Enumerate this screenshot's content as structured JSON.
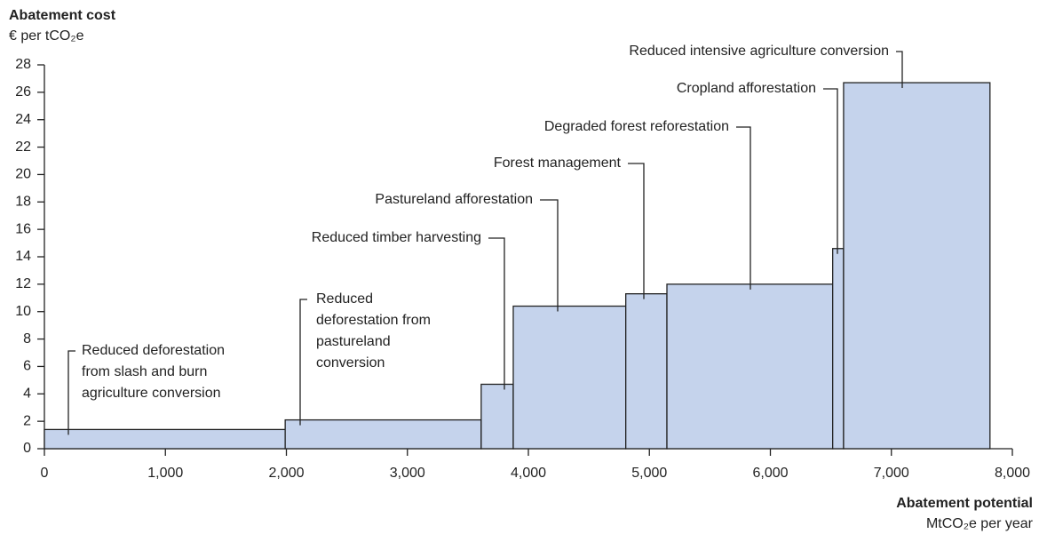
{
  "chart_data": {
    "type": "bar",
    "title": "Abatement cost",
    "y_unit": "€ per tCO₂e",
    "x_label": "Abatement potential",
    "x_unit": "MtCO₂e per year",
    "categories": [
      [
        "Reduced deforestation",
        "from slash and burn",
        "agriculture conversion"
      ],
      [
        "Reduced",
        "deforestation from",
        "pastureland",
        "conversion"
      ],
      [
        "Reduced timber harvesting"
      ],
      [
        "Pastureland afforestation"
      ],
      [
        "Forest management"
      ],
      [
        "Degraded forest reforestation"
      ],
      [
        "Cropland afforestation"
      ],
      [
        "Reduced intensive agriculture conversion"
      ]
    ],
    "widths": [
      1990,
      1620,
      265,
      930,
      340,
      1370,
      90,
      1210
    ],
    "values": [
      1.4,
      2.1,
      4.7,
      10.4,
      11.3,
      12.0,
      14.6,
      26.7
    ],
    "color": "#c5d3ec",
    "xlim": [
      0,
      8000
    ],
    "xticks": [
      0,
      {
        "value": 1000,
        "label": "1,000"
      },
      {
        "value": 2000,
        "label": "2,000"
      },
      {
        "value": 3000,
        "label": "3,000"
      },
      {
        "value": 4000,
        "label": "4,000"
      },
      {
        "value": 5000,
        "label": "5,000"
      },
      {
        "value": 6000,
        "label": "6,000"
      },
      {
        "value": 7000,
        "label": "7,000"
      },
      {
        "value": 8000,
        "label": "8,000"
      }
    ],
    "ylim": [
      0,
      28
    ],
    "yticks": [
      0,
      2,
      4,
      6,
      8,
      10,
      12,
      14,
      16,
      18,
      20,
      22,
      24,
      26,
      28
    ]
  }
}
